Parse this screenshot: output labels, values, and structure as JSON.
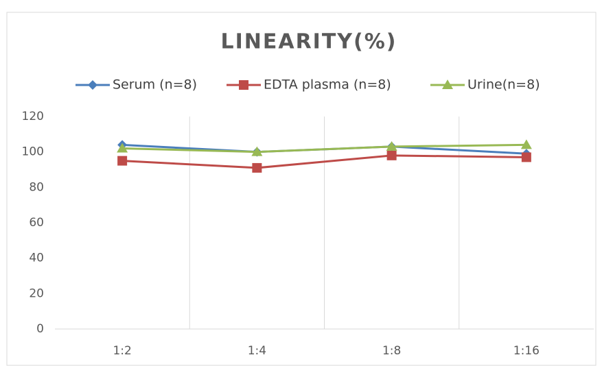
{
  "chart_data": {
    "type": "line",
    "title": "LINEARITY(%)",
    "categories": [
      "1:2",
      "1:4",
      "1:8",
      "1:16"
    ],
    "series": [
      {
        "name": "Serum (n=8)",
        "color": "#4a7ebb",
        "marker": "diamond",
        "values": [
          104,
          100,
          103,
          99
        ]
      },
      {
        "name": "EDTA plasma (n=8)",
        "color": "#be4b48",
        "marker": "square",
        "values": [
          95,
          91,
          98,
          97
        ]
      },
      {
        "name": "Urine(n=8)",
        "color": "#98b954",
        "marker": "triangle",
        "values": [
          102,
          100,
          103,
          104
        ]
      }
    ],
    "ylim": [
      0,
      120
    ],
    "yticks": [
      0,
      20,
      40,
      60,
      80,
      100,
      120
    ],
    "grid": "x",
    "legend": "top"
  }
}
